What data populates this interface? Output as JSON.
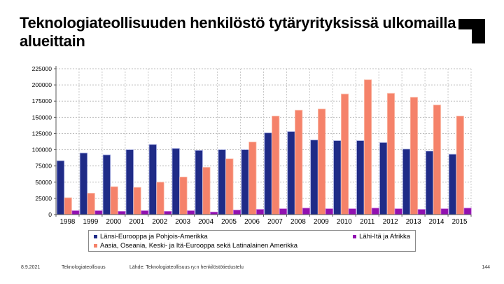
{
  "slide": {
    "title": "Teknologiateollisuuden henkilöstö tytäryrityksissä ulkomailla alueittain",
    "footer": {
      "date": "8.9.2021",
      "company": "Teknologiateollisuus",
      "source": "Lähde: Teknologiateollisuus ry:n henkilöstötiedustelu",
      "page_number": "144"
    },
    "logo": "teknologiateollisuus-corner-mark",
    "colors": {
      "logo": "#000000",
      "background": "#ffffff"
    }
  },
  "chart_data": {
    "type": "bar",
    "title": "",
    "xlabel": "",
    "ylabel": "",
    "categories": [
      "1998",
      "1999",
      "2000",
      "2001",
      "2002",
      "2003",
      "2004",
      "2005",
      "2006",
      "2007",
      "2008",
      "2009",
      "2010",
      "2011",
      "2012",
      "2013",
      "2014",
      "2015"
    ],
    "yticks": [
      0,
      25000,
      50000,
      75000,
      100000,
      125000,
      150000,
      175000,
      200000,
      225000
    ],
    "ylim": [
      0,
      225000
    ],
    "grid": true,
    "legend_position": "bottom",
    "series": [
      {
        "key": "lansi-eurooppa-ja-pohjois-amerikka",
        "name": "Länsi-Eurooppa ja Pohjois-Amerikka",
        "color": "#1f2b87",
        "edge": "#9aa2dd",
        "values": [
          83000,
          95000,
          92000,
          100000,
          108000,
          102000,
          99000,
          100000,
          100000,
          126000,
          128000,
          115000,
          114000,
          114000,
          111000,
          101000,
          98000,
          93000
        ]
      },
      {
        "key": "aasia-oseania-kie-ja-latinalainen-amerikka",
        "name": "Aasia, Oseania, Keski- ja Itä-Eurooppa sekä Latinalainen Amerikka",
        "color": "#f5826a",
        "edge": "#fbc0ae",
        "values": [
          26000,
          33000,
          43000,
          42000,
          50000,
          58000,
          73000,
          86000,
          112000,
          152000,
          161000,
          163000,
          186000,
          208000,
          187000,
          181000,
          169000,
          152000
        ]
      },
      {
        "key": "lahi-ita-ja-afrikka",
        "name": "Lähi-Itä ja Afrikka",
        "color": "#9111b0",
        "edge": "#c873dc",
        "values": [
          6000,
          6000,
          5000,
          6000,
          5000,
          6000,
          4000,
          7000,
          8000,
          9000,
          10000,
          9000,
          9000,
          10000,
          9000,
          8000,
          9000,
          10000
        ]
      }
    ]
  }
}
